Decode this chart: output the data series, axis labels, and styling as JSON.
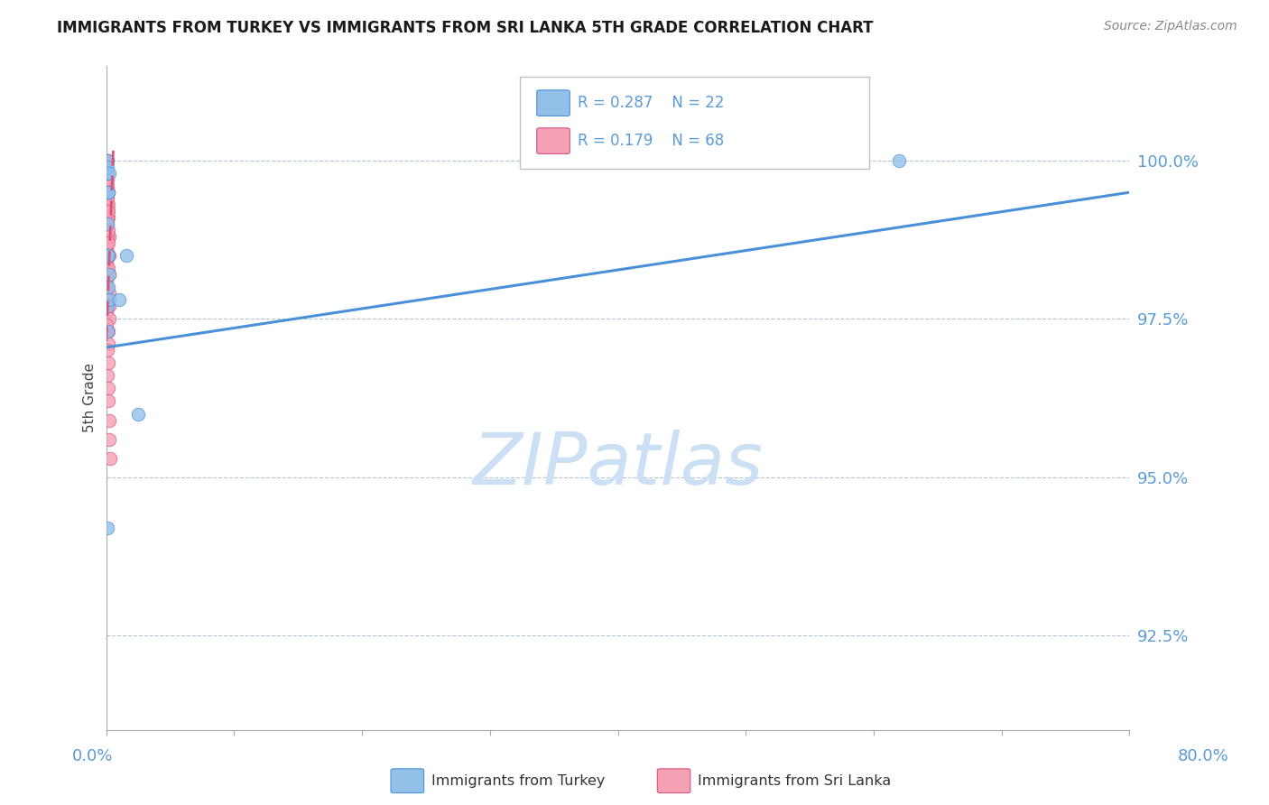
{
  "title": "IMMIGRANTS FROM TURKEY VS IMMIGRANTS FROM SRI LANKA 5TH GRADE CORRELATION CHART",
  "source": "Source: ZipAtlas.com",
  "ylabel": "5th Grade",
  "R_turkey": 0.287,
  "N_turkey": 22,
  "R_srilanka": 0.179,
  "N_srilanka": 68,
  "color_turkey": "#92c0e8",
  "color_srilanka": "#f4a0b5",
  "color_trendline_turkey": "#4a90d9",
  "color_trendline_srilanka": "#d9547a",
  "watermark_color": "#cce0f5",
  "xlim": [
    0.0,
    80.0
  ],
  "ylim": [
    91.0,
    101.5
  ],
  "ytick_vals": [
    92.5,
    95.0,
    97.5,
    100.0
  ],
  "ytick_labels": [
    "92.5%",
    "95.0%",
    "97.5%",
    "100.0%"
  ],
  "turkey_trend_x": [
    0.0,
    80.0
  ],
  "turkey_trend_y": [
    97.05,
    99.5
  ],
  "srilanka_trend_x": [
    0.0,
    0.55
  ],
  "srilanka_trend_y": [
    97.15,
    100.2
  ],
  "turkey_x": [
    0.0,
    0.04,
    0.07,
    0.1,
    0.1,
    0.14,
    0.18,
    0.22,
    0.06,
    0.12,
    0.22,
    0.06,
    0.09,
    0.16,
    0.2,
    0.15,
    0.12,
    1.0,
    1.6,
    2.5,
    62.0,
    0.08
  ],
  "turkey_y": [
    99.8,
    99.5,
    99.8,
    100.0,
    99.9,
    99.5,
    99.5,
    99.8,
    99.0,
    98.5,
    98.2,
    98.5,
    97.7,
    98.0,
    97.8,
    98.5,
    97.3,
    97.8,
    98.5,
    96.0,
    100.0,
    94.2
  ],
  "srilanka_x": [
    0.0,
    0.0,
    0.0,
    0.0,
    0.0,
    0.0,
    0.0,
    0.0,
    0.0,
    0.0,
    0.0,
    0.0,
    0.0,
    0.0,
    0.0,
    0.0,
    0.0,
    0.0,
    0.0,
    0.0,
    0.0,
    0.0,
    0.0,
    0.0,
    0.0,
    0.04,
    0.04,
    0.04,
    0.04,
    0.04,
    0.07,
    0.07,
    0.07,
    0.07,
    0.1,
    0.1,
    0.1,
    0.1,
    0.12,
    0.12,
    0.14,
    0.16,
    0.18,
    0.2,
    0.22,
    0.25,
    0.06,
    0.06,
    0.08,
    0.09,
    0.13,
    0.15,
    0.17,
    0.19,
    0.21,
    0.23,
    0.26,
    0.14,
    0.17,
    0.05,
    0.08,
    0.11,
    0.13,
    0.16,
    0.18,
    0.21,
    0.24,
    0.27
  ],
  "srilanka_y": [
    100.0,
    99.9,
    99.8,
    99.7,
    99.6,
    99.5,
    99.4,
    99.3,
    99.2,
    99.1,
    99.0,
    98.9,
    98.8,
    98.7,
    98.6,
    98.5,
    98.4,
    98.3,
    98.2,
    98.1,
    98.0,
    97.9,
    97.8,
    97.7,
    97.6,
    100.0,
    99.5,
    99.0,
    98.6,
    98.2,
    100.0,
    99.6,
    99.2,
    98.7,
    100.0,
    99.5,
    99.0,
    98.5,
    99.8,
    99.2,
    99.5,
    99.3,
    99.1,
    98.8,
    98.5,
    98.2,
    99.7,
    98.8,
    99.4,
    99.1,
    98.9,
    99.2,
    98.7,
    98.3,
    97.9,
    97.7,
    97.5,
    97.3,
    97.1,
    97.4,
    97.0,
    96.6,
    96.8,
    96.4,
    96.2,
    95.9,
    95.6,
    95.3
  ]
}
